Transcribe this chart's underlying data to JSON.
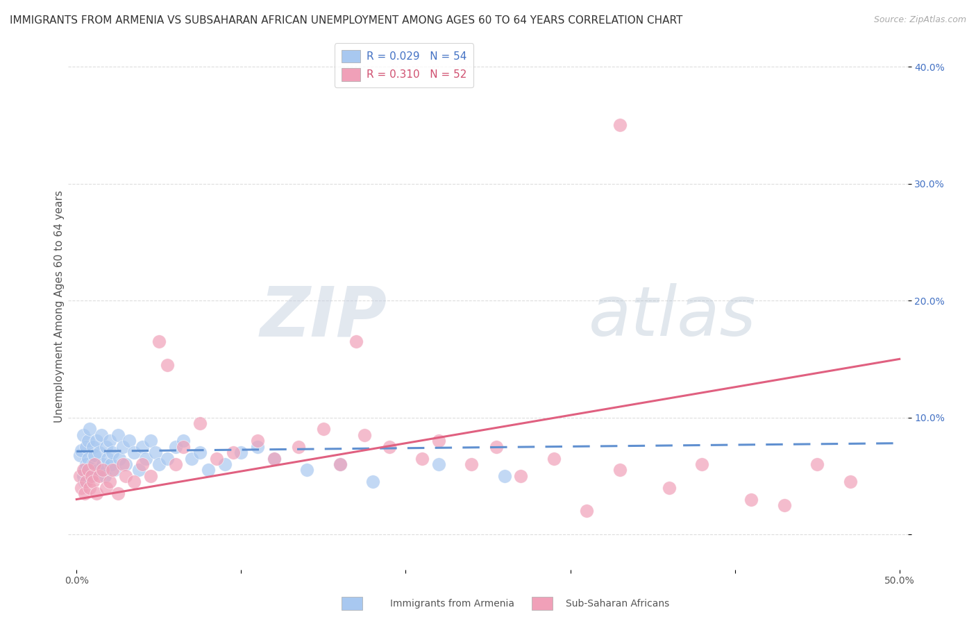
{
  "title": "IMMIGRANTS FROM ARMENIA VS SUBSAHARAN AFRICAN UNEMPLOYMENT AMONG AGES 60 TO 64 YEARS CORRELATION CHART",
  "source": "Source: ZipAtlas.com",
  "ylabel": "Unemployment Among Ages 60 to 64 years",
  "xlabel": "",
  "xlim": [
    -0.005,
    0.505
  ],
  "ylim": [
    -0.03,
    0.42
  ],
  "yticks": [
    0.0,
    0.1,
    0.2,
    0.3,
    0.4
  ],
  "ytick_labels": [
    "",
    "10.0%",
    "20.0%",
    "30.0%",
    "40.0%"
  ],
  "xticks": [
    0.0,
    0.1,
    0.2,
    0.3,
    0.4,
    0.5
  ],
  "xtick_labels": [
    "0.0%",
    "",
    "",
    "",
    "",
    "50.0%"
  ],
  "legend_R1": "R = 0.029",
  "legend_N1": "N = 54",
  "legend_R2": "R = 0.310",
  "legend_N2": "N = 52",
  "color_blue": "#A8C8F0",
  "color_pink": "#F0A0B8",
  "line_blue": "#6090D0",
  "line_pink": "#E06080",
  "watermark_zip": "ZIP",
  "watermark_atlas": "atlas",
  "background_color": "#ffffff",
  "grid_color": "#dddddd",
  "blue_scatter_x": [
    0.002,
    0.003,
    0.004,
    0.004,
    0.005,
    0.005,
    0.006,
    0.006,
    0.007,
    0.007,
    0.008,
    0.009,
    0.01,
    0.01,
    0.011,
    0.012,
    0.013,
    0.014,
    0.015,
    0.016,
    0.017,
    0.018,
    0.019,
    0.02,
    0.021,
    0.022,
    0.023,
    0.025,
    0.026,
    0.028,
    0.03,
    0.032,
    0.035,
    0.038,
    0.04,
    0.042,
    0.045,
    0.048,
    0.05,
    0.055,
    0.06,
    0.065,
    0.07,
    0.075,
    0.08,
    0.09,
    0.1,
    0.11,
    0.12,
    0.14,
    0.16,
    0.18,
    0.22,
    0.26
  ],
  "blue_scatter_y": [
    0.068,
    0.072,
    0.05,
    0.085,
    0.055,
    0.045,
    0.06,
    0.075,
    0.08,
    0.065,
    0.09,
    0.05,
    0.06,
    0.075,
    0.068,
    0.08,
    0.055,
    0.07,
    0.085,
    0.06,
    0.05,
    0.075,
    0.065,
    0.08,
    0.06,
    0.07,
    0.055,
    0.085,
    0.065,
    0.075,
    0.06,
    0.08,
    0.07,
    0.055,
    0.075,
    0.065,
    0.08,
    0.07,
    0.06,
    0.065,
    0.075,
    0.08,
    0.065,
    0.07,
    0.055,
    0.06,
    0.07,
    0.075,
    0.065,
    0.055,
    0.06,
    0.045,
    0.06,
    0.05
  ],
  "pink_scatter_x": [
    0.002,
    0.003,
    0.004,
    0.005,
    0.006,
    0.007,
    0.008,
    0.009,
    0.01,
    0.011,
    0.012,
    0.014,
    0.016,
    0.018,
    0.02,
    0.022,
    0.025,
    0.028,
    0.03,
    0.035,
    0.04,
    0.045,
    0.05,
    0.055,
    0.06,
    0.065,
    0.075,
    0.085,
    0.095,
    0.11,
    0.12,
    0.135,
    0.15,
    0.16,
    0.175,
    0.19,
    0.21,
    0.22,
    0.24,
    0.255,
    0.27,
    0.29,
    0.31,
    0.33,
    0.36,
    0.38,
    0.41,
    0.43,
    0.45,
    0.47,
    0.33,
    0.17
  ],
  "pink_scatter_y": [
    0.05,
    0.04,
    0.055,
    0.035,
    0.045,
    0.055,
    0.04,
    0.05,
    0.045,
    0.06,
    0.035,
    0.05,
    0.055,
    0.04,
    0.045,
    0.055,
    0.035,
    0.06,
    0.05,
    0.045,
    0.06,
    0.05,
    0.165,
    0.145,
    0.06,
    0.075,
    0.095,
    0.065,
    0.07,
    0.08,
    0.065,
    0.075,
    0.09,
    0.06,
    0.085,
    0.075,
    0.065,
    0.08,
    0.06,
    0.075,
    0.05,
    0.065,
    0.02,
    0.055,
    0.04,
    0.06,
    0.03,
    0.025,
    0.06,
    0.045,
    0.35,
    0.165
  ],
  "blue_trend_x": [
    0.0,
    0.5
  ],
  "blue_trend_y": [
    0.071,
    0.078
  ],
  "pink_trend_x": [
    0.0,
    0.5
  ],
  "pink_trend_y": [
    0.03,
    0.15
  ],
  "title_fontsize": 11,
  "source_fontsize": 9,
  "ylabel_fontsize": 11,
  "tick_fontsize": 10,
  "legend_fontsize": 11
}
